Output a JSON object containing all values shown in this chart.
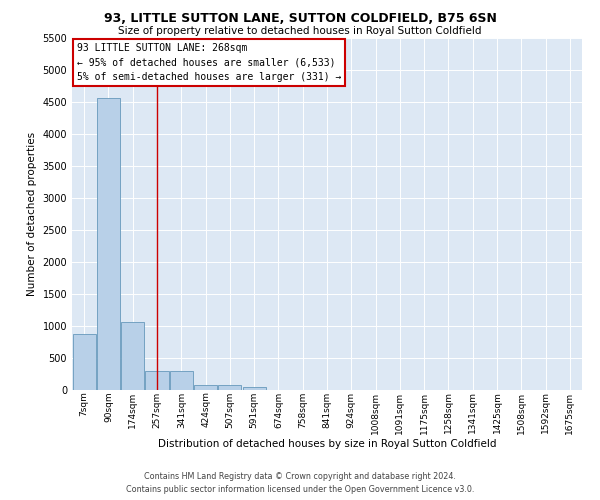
{
  "title": "93, LITTLE SUTTON LANE, SUTTON COLDFIELD, B75 6SN",
  "subtitle": "Size of property relative to detached houses in Royal Sutton Coldfield",
  "xlabel": "Distribution of detached houses by size in Royal Sutton Coldfield",
  "ylabel": "Number of detached properties",
  "footer_line1": "Contains HM Land Registry data © Crown copyright and database right 2024.",
  "footer_line2": "Contains public sector information licensed under the Open Government Licence v3.0.",
  "annotation_line1": "93 LITTLE SUTTON LANE: 268sqm",
  "annotation_line2": "← 95% of detached houses are smaller (6,533)",
  "annotation_line3": "5% of semi-detached houses are larger (331) →",
  "bar_color": "#b8d0e8",
  "bar_edge_color": "#6699bb",
  "background_color": "#dde8f4",
  "annotation_edge_color": "#cc0000",
  "vline_color": "#cc0000",
  "categories": [
    "7sqm",
    "90sqm",
    "174sqm",
    "257sqm",
    "341sqm",
    "424sqm",
    "507sqm",
    "591sqm",
    "674sqm",
    "758sqm",
    "841sqm",
    "924sqm",
    "1008sqm",
    "1091sqm",
    "1175sqm",
    "1258sqm",
    "1341sqm",
    "1425sqm",
    "1508sqm",
    "1592sqm",
    "1675sqm"
  ],
  "values": [
    880,
    4560,
    1060,
    290,
    290,
    80,
    80,
    50,
    0,
    0,
    0,
    0,
    0,
    0,
    0,
    0,
    0,
    0,
    0,
    0,
    0
  ],
  "ylim_max": 5500,
  "yticks": [
    0,
    500,
    1000,
    1500,
    2000,
    2500,
    3000,
    3500,
    4000,
    4500,
    5000,
    5500
  ],
  "vline_index": 3.0,
  "title_fontsize": 9,
  "subtitle_fontsize": 7.5,
  "ylabel_fontsize": 7.5,
  "xlabel_fontsize": 7.5,
  "tick_fontsize": 7,
  "xtick_fontsize": 6.5,
  "annotation_fontsize": 7,
  "footer_fontsize": 5.8
}
